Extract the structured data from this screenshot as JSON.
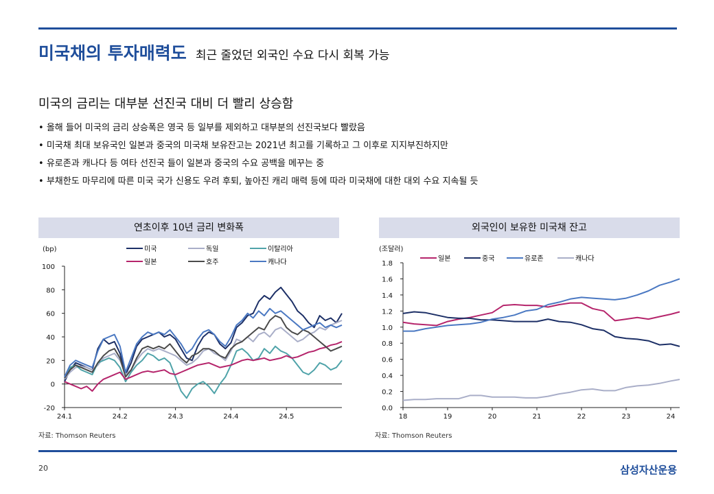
{
  "header": {
    "title_main": "미국채의 투자매력도",
    "title_sub": "최근 줄었던 외국인 수요 다시 회복 가능",
    "subheading": "미국의 금리는 대부분 선진국 대비 더 빨리 상승함",
    "bullets": [
      "올해 들어 미국의 금리 상승폭은 영국 등 일부를 제외하고 대부분의 선진국보다 빨랐음",
      "미국채 최대 보유국인 일본과 중국의 미국채 보유잔고는 2021년 최고를 기록하고 그 이후로 지지부진하지만",
      "유로존과 캐나다 등 여타 선진국 들이 일본과 중국의 수요 공백을 메꾸는 중",
      "부채한도 마무리에 따른 미국 국가 신용도 우려 후퇴, 높아진 캐리 매력 등에 따라 미국채에 대한 대외 수요 지속될 듯"
    ]
  },
  "footer": {
    "page_number": "20",
    "brand": "삼성자산운용"
  },
  "chart_data": [
    {
      "type": "line",
      "title": "연초이후 10년 금리 변화폭",
      "unit_label": "(bp)",
      "source": "자료: Thomson Reuters",
      "x_ticks": [
        "24.1",
        "24.2",
        "24.3",
        "24.4",
        "24.5"
      ],
      "x_tick_positions": [
        0,
        20,
        40,
        60,
        80
      ],
      "xlim": [
        0,
        100
      ],
      "ylim": [
        -20,
        100
      ],
      "y_ticks": [
        -20,
        0,
        20,
        40,
        60,
        80,
        100
      ],
      "colors": {
        "미국": "#1c2f66",
        "독일": "#a9aec8",
        "이탈리아": "#4fa3a9",
        "일본": "#b5246b",
        "호주": "#4a4a4a",
        "캐나다": "#4a78c2"
      },
      "series": [
        {
          "name": "미국",
          "x": [
            0,
            2,
            4,
            6,
            8,
            10,
            12,
            14,
            16,
            18,
            20,
            22,
            24,
            26,
            28,
            30,
            32,
            34,
            36,
            38,
            40,
            42,
            44,
            46,
            48,
            50,
            52,
            54,
            56,
            58,
            60,
            62,
            64,
            66,
            68,
            70,
            72,
            74,
            76,
            78,
            80,
            82,
            84,
            86,
            88,
            90,
            92,
            94,
            96,
            98,
            100
          ],
          "y": [
            2,
            12,
            18,
            16,
            14,
            12,
            30,
            38,
            34,
            36,
            26,
            8,
            18,
            32,
            38,
            40,
            42,
            44,
            40,
            42,
            38,
            30,
            22,
            20,
            32,
            40,
            44,
            42,
            34,
            30,
            35,
            48,
            52,
            58,
            60,
            70,
            75,
            72,
            78,
            82,
            76,
            70,
            62,
            58,
            52,
            48,
            58,
            54,
            56,
            52,
            60
          ]
        },
        {
          "name": "독일",
          "x": [
            0,
            2,
            4,
            6,
            8,
            10,
            12,
            14,
            16,
            18,
            20,
            22,
            24,
            26,
            28,
            30,
            32,
            34,
            36,
            38,
            40,
            42,
            44,
            46,
            48,
            50,
            52,
            54,
            56,
            58,
            60,
            62,
            64,
            66,
            68,
            70,
            72,
            74,
            76,
            78,
            80,
            82,
            84,
            86,
            88,
            90,
            92,
            94,
            96,
            98,
            100
          ],
          "y": [
            4,
            10,
            14,
            15,
            14,
            12,
            16,
            22,
            24,
            26,
            20,
            8,
            12,
            20,
            26,
            30,
            28,
            30,
            28,
            26,
            24,
            20,
            16,
            18,
            22,
            28,
            30,
            26,
            24,
            20,
            28,
            38,
            36,
            40,
            36,
            42,
            44,
            40,
            46,
            48,
            44,
            40,
            36,
            38,
            42,
            44,
            48,
            46,
            50,
            52,
            54
          ]
        },
        {
          "name": "이탈리아",
          "x": [
            0,
            2,
            4,
            6,
            8,
            10,
            12,
            14,
            16,
            18,
            20,
            22,
            24,
            26,
            28,
            30,
            32,
            34,
            36,
            38,
            40,
            42,
            44,
            46,
            48,
            50,
            52,
            54,
            56,
            58,
            60,
            62,
            64,
            66,
            68,
            70,
            72,
            74,
            76,
            78,
            80,
            82,
            84,
            86,
            88,
            90,
            92,
            94,
            96,
            98,
            100
          ],
          "y": [
            6,
            14,
            16,
            12,
            10,
            8,
            18,
            20,
            22,
            20,
            14,
            2,
            10,
            16,
            20,
            26,
            24,
            20,
            22,
            18,
            6,
            -6,
            -12,
            -4,
            0,
            2,
            -2,
            -8,
            0,
            6,
            16,
            28,
            30,
            26,
            20,
            22,
            30,
            26,
            32,
            28,
            26,
            22,
            16,
            10,
            8,
            12,
            18,
            16,
            12,
            14,
            20
          ]
        },
        {
          "name": "일본",
          "x": [
            0,
            2,
            4,
            6,
            8,
            10,
            12,
            14,
            16,
            18,
            20,
            22,
            24,
            26,
            28,
            30,
            32,
            34,
            36,
            38,
            40,
            42,
            44,
            46,
            48,
            50,
            52,
            54,
            56,
            58,
            60,
            62,
            64,
            66,
            68,
            70,
            72,
            74,
            76,
            78,
            80,
            82,
            84,
            86,
            88,
            90,
            92,
            94,
            96,
            98,
            100
          ],
          "y": [
            2,
            0,
            -2,
            -4,
            -2,
            -6,
            0,
            4,
            6,
            8,
            10,
            4,
            6,
            8,
            10,
            11,
            10,
            11,
            12,
            9,
            8,
            10,
            12,
            14,
            16,
            17,
            18,
            16,
            14,
            15,
            16,
            18,
            20,
            21,
            20,
            21,
            22,
            20,
            21,
            22,
            24,
            22,
            23,
            25,
            27,
            28,
            30,
            31,
            33,
            34,
            36
          ]
        },
        {
          "name": "호주",
          "x": [
            0,
            2,
            4,
            6,
            8,
            10,
            12,
            14,
            16,
            18,
            20,
            22,
            24,
            26,
            28,
            30,
            32,
            34,
            36,
            38,
            40,
            42,
            44,
            46,
            48,
            50,
            52,
            54,
            56,
            58,
            60,
            62,
            64,
            66,
            68,
            70,
            72,
            74,
            76,
            78,
            80,
            82,
            84,
            86,
            88,
            90,
            92,
            94,
            96,
            98,
            100
          ],
          "y": [
            5,
            12,
            16,
            14,
            12,
            10,
            18,
            24,
            28,
            30,
            22,
            6,
            12,
            22,
            30,
            32,
            30,
            32,
            30,
            34,
            28,
            22,
            18,
            24,
            26,
            30,
            30,
            28,
            24,
            22,
            30,
            34,
            36,
            40,
            44,
            48,
            46,
            54,
            58,
            56,
            48,
            44,
            42,
            46,
            44,
            40,
            36,
            32,
            28,
            30,
            32
          ]
        },
        {
          "name": "캐나다",
          "x": [
            0,
            2,
            4,
            6,
            8,
            10,
            12,
            14,
            16,
            18,
            20,
            22,
            24,
            26,
            28,
            30,
            32,
            34,
            36,
            38,
            40,
            42,
            44,
            46,
            48,
            50,
            52,
            54,
            56,
            58,
            60,
            62,
            64,
            66,
            68,
            70,
            72,
            74,
            76,
            78,
            80,
            82,
            84,
            86,
            88,
            90,
            92,
            94,
            96,
            98,
            100
          ],
          "y": [
            6,
            16,
            20,
            18,
            16,
            14,
            28,
            38,
            40,
            42,
            32,
            10,
            22,
            34,
            40,
            44,
            42,
            44,
            42,
            46,
            40,
            34,
            26,
            30,
            38,
            44,
            46,
            42,
            36,
            32,
            40,
            50,
            54,
            60,
            56,
            62,
            58,
            64,
            60,
            62,
            58,
            54,
            50,
            46,
            48,
            50,
            52,
            48,
            50,
            48,
            50
          ]
        }
      ]
    },
    {
      "type": "line",
      "title": "외국인이 보유한 미국채 잔고",
      "unit_label": "(조달러)",
      "source": "자료: Thomson Reuters",
      "x_ticks": [
        "18",
        "19",
        "20",
        "21",
        "22",
        "23",
        "24"
      ],
      "x_tick_positions": [
        2018,
        2019,
        2020,
        2021,
        2022,
        2023,
        2024
      ],
      "xlim": [
        2018,
        2024.2
      ],
      "ylim": [
        0,
        1.8
      ],
      "y_ticks": [
        "0.0",
        "0.2",
        "0.4",
        "0.6",
        "0.8",
        "1.0",
        "1.2",
        "1.4",
        "1.6",
        "1.8"
      ],
      "colors": {
        "일본": "#b5246b",
        "중국": "#1c2f66",
        "유로존": "#4a78c2",
        "캐나다": "#a9aec8"
      },
      "series": [
        {
          "name": "일본",
          "x": [
            2018,
            2018.25,
            2018.5,
            2018.75,
            2019,
            2019.25,
            2019.5,
            2019.75,
            2020,
            2020.25,
            2020.5,
            2020.75,
            2021,
            2021.25,
            2021.5,
            2021.75,
            2022,
            2022.25,
            2022.5,
            2022.75,
            2023,
            2023.25,
            2023.5,
            2023.75,
            2024,
            2024.2
          ],
          "y": [
            1.06,
            1.04,
            1.03,
            1.02,
            1.07,
            1.1,
            1.12,
            1.15,
            1.18,
            1.27,
            1.28,
            1.27,
            1.27,
            1.25,
            1.28,
            1.3,
            1.3,
            1.23,
            1.2,
            1.08,
            1.1,
            1.12,
            1.1,
            1.13,
            1.16,
            1.19
          ]
        },
        {
          "name": "중국",
          "x": [
            2018,
            2018.25,
            2018.5,
            2018.75,
            2019,
            2019.25,
            2019.5,
            2019.75,
            2020,
            2020.25,
            2020.5,
            2020.75,
            2021,
            2021.25,
            2021.5,
            2021.75,
            2022,
            2022.25,
            2022.5,
            2022.75,
            2023,
            2023.25,
            2023.5,
            2023.75,
            2024,
            2024.2
          ],
          "y": [
            1.17,
            1.19,
            1.18,
            1.15,
            1.12,
            1.11,
            1.11,
            1.09,
            1.09,
            1.08,
            1.07,
            1.07,
            1.07,
            1.1,
            1.07,
            1.06,
            1.03,
            0.98,
            0.96,
            0.88,
            0.86,
            0.85,
            0.83,
            0.78,
            0.79,
            0.76
          ]
        },
        {
          "name": "유로존",
          "x": [
            2018,
            2018.25,
            2018.5,
            2018.75,
            2019,
            2019.25,
            2019.5,
            2019.75,
            2020,
            2020.25,
            2020.5,
            2020.75,
            2021,
            2021.25,
            2021.5,
            2021.75,
            2022,
            2022.25,
            2022.5,
            2022.75,
            2023,
            2023.25,
            2023.5,
            2023.75,
            2024,
            2024.2
          ],
          "y": [
            0.95,
            0.95,
            0.98,
            1.0,
            1.02,
            1.03,
            1.04,
            1.06,
            1.1,
            1.12,
            1.15,
            1.2,
            1.22,
            1.28,
            1.31,
            1.35,
            1.37,
            1.36,
            1.35,
            1.34,
            1.36,
            1.4,
            1.45,
            1.52,
            1.56,
            1.6
          ]
        },
        {
          "name": "캐나다",
          "x": [
            2018,
            2018.25,
            2018.5,
            2018.75,
            2019,
            2019.25,
            2019.5,
            2019.75,
            2020,
            2020.25,
            2020.5,
            2020.75,
            2021,
            2021.25,
            2021.5,
            2021.75,
            2022,
            2022.25,
            2022.5,
            2022.75,
            2023,
            2023.25,
            2023.5,
            2023.75,
            2024,
            2024.2
          ],
          "y": [
            0.09,
            0.1,
            0.1,
            0.11,
            0.11,
            0.11,
            0.15,
            0.15,
            0.13,
            0.13,
            0.13,
            0.12,
            0.12,
            0.14,
            0.17,
            0.19,
            0.22,
            0.23,
            0.21,
            0.21,
            0.25,
            0.27,
            0.28,
            0.3,
            0.33,
            0.35
          ]
        }
      ]
    }
  ]
}
